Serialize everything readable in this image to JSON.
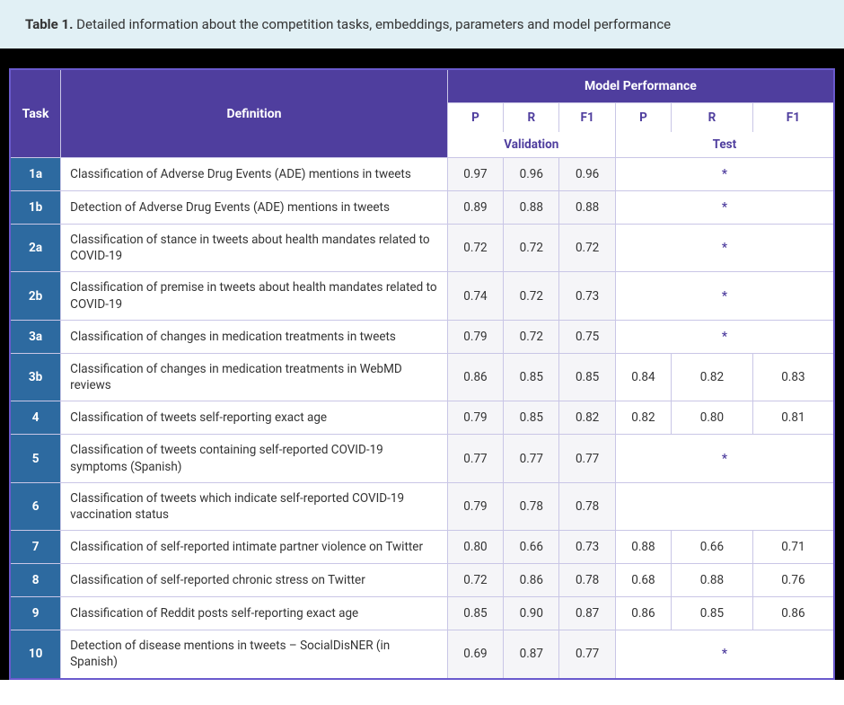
{
  "caption": {
    "label": "Table 1.",
    "text": "Detailed information about  the competition tasks,  embeddings,  parameters and model performance"
  },
  "headers": {
    "task": "Task",
    "definition": "Definition",
    "model_performance": "Model Performance",
    "P": "P",
    "R": "R",
    "F1": "F1",
    "validation": "Validation",
    "test": "Test"
  },
  "colors": {
    "caption_bg": "#e1f0f5",
    "frame_bg": "#000000",
    "header_bg": "#4f3e9e",
    "header_fg": "#ffffff",
    "task_bg": "#2d6aa0",
    "cell_border": "#c9c6e6",
    "val_bg": "#f5f5f8",
    "accent_text": "#4f3e9e"
  },
  "rows": [
    {
      "task": "1a",
      "definition": "Classification of Adverse Drug Events (ADE) mentions in tweets",
      "vP": "0.97",
      "vR": "0.96",
      "vF1": "0.96",
      "test_star": true
    },
    {
      "task": "1b",
      "definition": "Detection of Adverse Drug Events (ADE) mentions in tweets",
      "vP": "0.89",
      "vR": "0.88",
      "vF1": "0.88",
      "test_star": true
    },
    {
      "task": "2a",
      "definition": "Classification of stance in tweets about health mandates related to COVID-19",
      "vP": "0.72",
      "vR": "0.72",
      "vF1": "0.72",
      "test_star": true
    },
    {
      "task": "2b",
      "definition": "Classification of premise in tweets about health mandates related to COVID-19",
      "vP": "0.74",
      "vR": "0.72",
      "vF1": "0.73",
      "test_star": true
    },
    {
      "task": "3a",
      "definition": "Classification of changes in medication treatments in tweets",
      "vP": "0.79",
      "vR": "0.72",
      "vF1": "0.75",
      "test_star": true
    },
    {
      "task": "3b",
      "definition": "Classification of changes in medication treatments in WebMD reviews",
      "vP": "0.86",
      "vR": "0.85",
      "vF1": "0.85",
      "tP": "0.84",
      "tR": "0.82",
      "tF1": "0.83"
    },
    {
      "task": "4",
      "definition": "Classification of tweets self-reporting exact age",
      "vP": "0.79",
      "vR": "0.85",
      "vF1": "0.82",
      "tP": "0.82",
      "tR": "0.80",
      "tF1": "0.81"
    },
    {
      "task": "5",
      "definition": "Classification of tweets containing self-reported COVID-19 symptoms (Spanish)",
      "vP": "0.77",
      "vR": "0.77",
      "vF1": "0.77",
      "test_star": true
    },
    {
      "task": "6",
      "definition": "Classification of tweets which indicate self-reported COVID-19 vaccination status",
      "vP": "0.79",
      "vR": "0.78",
      "vF1": "0.78",
      "test_blank": true
    },
    {
      "task": "7",
      "definition": "Classification of self-reported intimate partner violence on Twitter",
      "vP": "0.80",
      "vR": "0.66",
      "vF1": "0.73",
      "tP": "0.88",
      "tR": "0.66",
      "tF1": "0.71"
    },
    {
      "task": "8",
      "definition": "Classification of self-reported chronic stress on Twitter",
      "vP": "0.72",
      "vR": "0.86",
      "vF1": "0.78",
      "tP": "0.68",
      "tR": "0.88",
      "tF1": "0.76"
    },
    {
      "task": "9",
      "definition": "Classification of Reddit posts self-reporting exact age",
      "vP": "0.85",
      "vR": "0.90",
      "vF1": "0.87",
      "tP": "0.86",
      "tR": "0.85",
      "tF1": "0.86"
    },
    {
      "task": "10",
      "definition": "Detection of disease mentions in tweets – SocialDisNER (in Spanish)",
      "vP": "0.69",
      "vR": "0.87",
      "vF1": "0.77",
      "test_star": true
    }
  ]
}
